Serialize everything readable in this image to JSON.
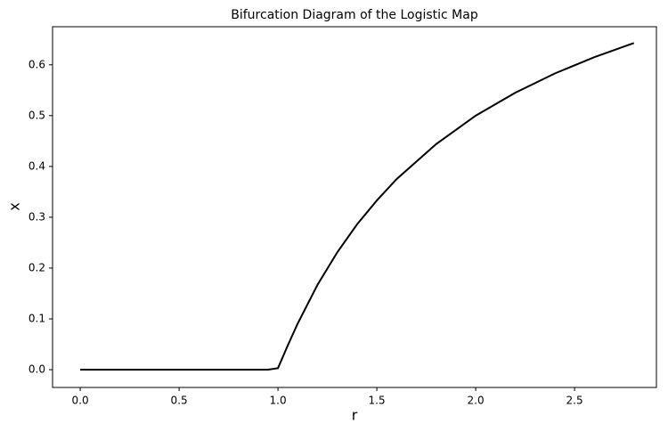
{
  "chart_data": {
    "type": "line",
    "title": "Bifurcation Diagram of the Logistic Map",
    "x_label": "r",
    "y_label": "x",
    "x": [
      0,
      0.25,
      0.5,
      0.75,
      0.95,
      1.0,
      1.05,
      1.1,
      1.2,
      1.3,
      1.4,
      1.5,
      1.6,
      1.8,
      2.0,
      2.2,
      2.4,
      2.6,
      2.8
    ],
    "series": [
      {
        "color": "#000000",
        "values": [
          0,
          0,
          0,
          0,
          0,
          0.003,
          0.048,
          0.091,
          0.167,
          0.231,
          0.286,
          0.333,
          0.375,
          0.444,
          0.5,
          0.545,
          0.583,
          0.615,
          0.643
        ]
      }
    ],
    "xlim": [
      -0.14,
      2.914
    ],
    "ylim": [
      -0.035,
      0.675
    ],
    "xticks": [
      {
        "value": 0,
        "label": "0.0"
      },
      {
        "value": 0.5,
        "label": "0.5"
      },
      {
        "value": 1,
        "label": "1.0"
      },
      {
        "value": 1.5,
        "label": "1.5"
      },
      {
        "value": 2,
        "label": "2.0"
      },
      {
        "value": 2.5,
        "label": "2.5"
      }
    ],
    "yticks": [
      {
        "value": 0,
        "label": "0.0"
      },
      {
        "value": 0.1,
        "label": "0.1"
      },
      {
        "value": 0.2,
        "label": "0.2"
      },
      {
        "value": 0.3,
        "label": "0.3"
      },
      {
        "value": 0.4,
        "label": "0.4"
      },
      {
        "value": 0.5,
        "label": "0.5"
      },
      {
        "value": 0.6,
        "label": "0.6"
      }
    ],
    "grid": false
  }
}
